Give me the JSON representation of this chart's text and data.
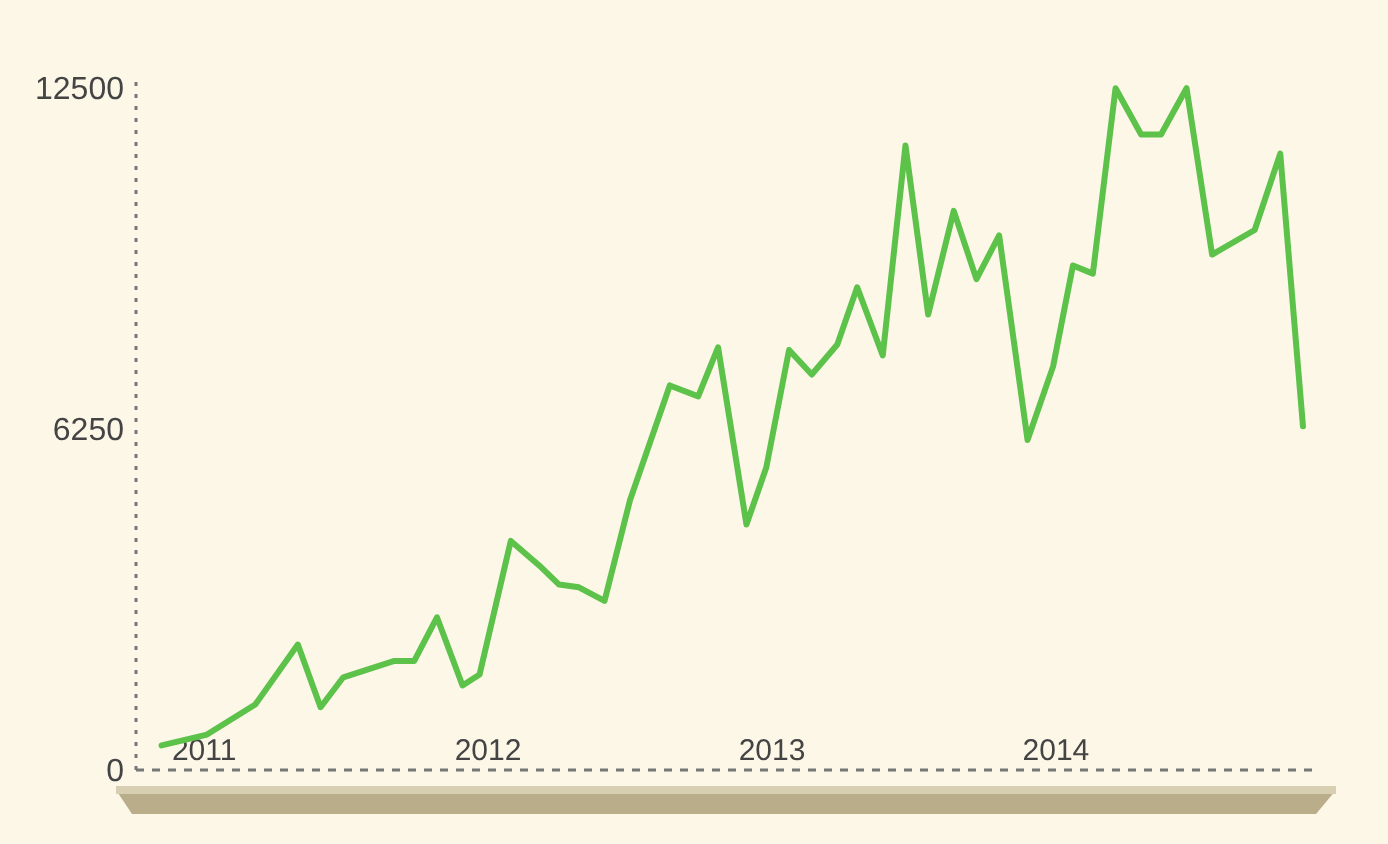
{
  "chart_data": {
    "type": "line",
    "x": [
      2010.85,
      2011.01,
      2011.18,
      2011.33,
      2011.41,
      2011.49,
      2011.67,
      2011.74,
      2011.82,
      2011.91,
      2011.97,
      2012.08,
      2012.18,
      2012.25,
      2012.32,
      2012.41,
      2012.5,
      2012.64,
      2012.74,
      2012.81,
      2012.91,
      2012.98,
      2013.06,
      2013.14,
      2013.23,
      2013.3,
      2013.39,
      2013.47,
      2013.55,
      2013.64,
      2013.72,
      2013.8,
      2013.9,
      2013.99,
      2014.06,
      2014.13,
      2014.21,
      2014.3,
      2014.37,
      2014.46,
      2014.55,
      2014.7,
      2014.79,
      2014.87
    ],
    "series": [
      {
        "color": "#5cc24a",
        "values": [
          450,
          650,
          1200,
          2300,
          1150,
          1700,
          2000,
          2000,
          2800,
          1550,
          1750,
          4200,
          3750,
          3400,
          3350,
          3100,
          4950,
          7050,
          6850,
          7750,
          4500,
          5550,
          7700,
          7250,
          7800,
          8850,
          7600,
          11450,
          8350,
          10250,
          9000,
          9800,
          6050,
          7400,
          9250,
          9100,
          12500,
          11650,
          11650,
          12500,
          9450,
          9900,
          11300,
          6300
        ]
      }
    ],
    "xlim": [
      2010.76,
      2014.93
    ],
    "xticks": [
      2011,
      2012,
      2013,
      2014
    ],
    "ylim": [
      0,
      12650
    ],
    "yticks": [
      0,
      6250,
      12500
    ],
    "line_style": "solid",
    "marker": "none"
  }
}
